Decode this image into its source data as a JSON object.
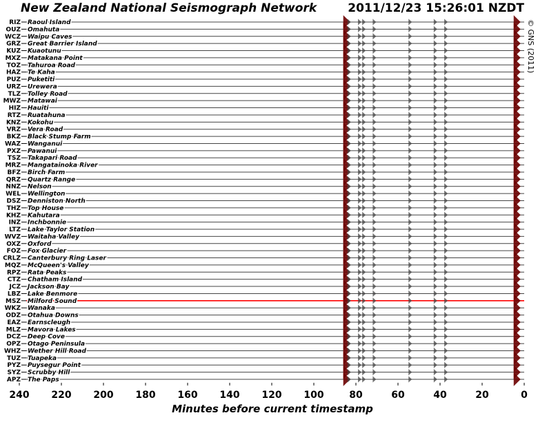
{
  "chart_data": {
    "type": "seismogram",
    "title": "New Zealand National Seismograph Network",
    "timestamp": "2011/12/23 15:26:01 NZDT",
    "copyright": "© GNS (2011)",
    "x_label": "Minutes before current timestamp",
    "xlim": [
      240,
      0
    ],
    "xticks": [
      240,
      220,
      200,
      180,
      160,
      140,
      120,
      100,
      80,
      60,
      40,
      20,
      0
    ],
    "line_color": "#444444",
    "highlight_color": "#ff0000",
    "event_color": "#6b0000",
    "events": [
      86,
      84,
      79,
      77,
      72,
      55,
      43,
      38,
      5
    ],
    "stations": [
      {
        "code": "RIZ",
        "name": "Raoul Island"
      },
      {
        "code": "OUZ",
        "name": "Omahuta"
      },
      {
        "code": "WCZ",
        "name": "Waipu Caves"
      },
      {
        "code": "GRZ",
        "name": "Great Barrier Island"
      },
      {
        "code": "KUZ",
        "name": "Kuaotunu"
      },
      {
        "code": "MXZ",
        "name": "Matakana Point"
      },
      {
        "code": "TOZ",
        "name": "Tahuroa Road"
      },
      {
        "code": "HAZ",
        "name": "Te Kaha"
      },
      {
        "code": "PUZ",
        "name": "Puketiti"
      },
      {
        "code": "URZ",
        "name": "Urewera"
      },
      {
        "code": "TLZ",
        "name": "Tolley Road"
      },
      {
        "code": "MWZ",
        "name": "Matawai"
      },
      {
        "code": "HIZ",
        "name": "Hauiti"
      },
      {
        "code": "RTZ",
        "name": "Ruatahuna"
      },
      {
        "code": "KNZ",
        "name": "Kokohu"
      },
      {
        "code": "VRZ",
        "name": "Vera Road"
      },
      {
        "code": "BKZ",
        "name": "Black Stump Farm"
      },
      {
        "code": "WAZ",
        "name": "Wanganui"
      },
      {
        "code": "PXZ",
        "name": "Pawanui"
      },
      {
        "code": "TSZ",
        "name": "Takapari Road"
      },
      {
        "code": "MRZ",
        "name": "Mangatainoka River"
      },
      {
        "code": "BFZ",
        "name": "Birch Farm"
      },
      {
        "code": "QRZ",
        "name": "Quartz Range"
      },
      {
        "code": "NNZ",
        "name": "Nelson"
      },
      {
        "code": "WEL",
        "name": "Wellington"
      },
      {
        "code": "DSZ",
        "name": "Denniston North"
      },
      {
        "code": "THZ",
        "name": "Top House"
      },
      {
        "code": "KHZ",
        "name": "Kahutara"
      },
      {
        "code": "INZ",
        "name": "Inchbonnie"
      },
      {
        "code": "LTZ",
        "name": "Lake Taylor Station"
      },
      {
        "code": "WVZ",
        "name": "Waitaha Valley"
      },
      {
        "code": "OXZ",
        "name": "Oxford"
      },
      {
        "code": "FOZ",
        "name": "Fox Glacier"
      },
      {
        "code": "CRLZ",
        "name": "Canterbury Ring Laser"
      },
      {
        "code": "MQZ",
        "name": "McQueen's Valley"
      },
      {
        "code": "RPZ",
        "name": "Rata Peaks"
      },
      {
        "code": "CTZ",
        "name": "Chatham Island"
      },
      {
        "code": "JCZ",
        "name": "Jackson Bay"
      },
      {
        "code": "LBZ",
        "name": "Lake Benmore"
      },
      {
        "code": "MSZ",
        "name": "Milford Sound",
        "highlight": true
      },
      {
        "code": "WKZ",
        "name": "Wanaka"
      },
      {
        "code": "ODZ",
        "name": "Otahua Downs"
      },
      {
        "code": "EAZ",
        "name": "Earnscleugh"
      },
      {
        "code": "MLZ",
        "name": "Mavora Lakes"
      },
      {
        "code": "DCZ",
        "name": "Deep Cove"
      },
      {
        "code": "OPZ",
        "name": "Otago Peninsula"
      },
      {
        "code": "WHZ",
        "name": "Wether Hill Road"
      },
      {
        "code": "TUZ",
        "name": "Tuapeka"
      },
      {
        "code": "PYZ",
        "name": "Puysegur Point"
      },
      {
        "code": "SYZ",
        "name": "Scrubby Hill"
      },
      {
        "code": "APZ",
        "name": "The Paps"
      }
    ]
  }
}
